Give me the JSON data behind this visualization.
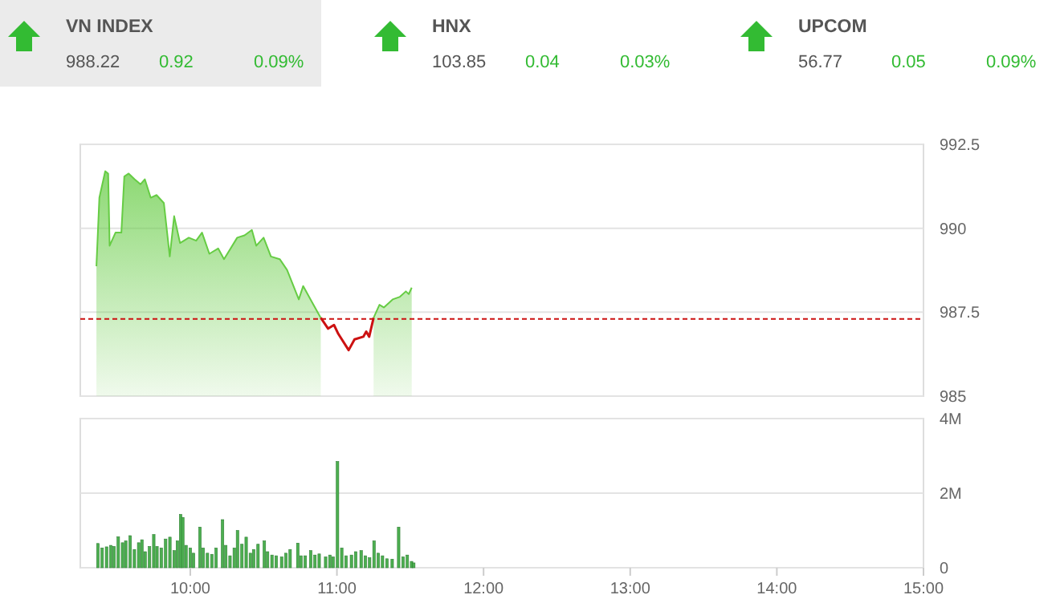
{
  "chart_data": [
    {
      "type": "other",
      "annotations": [
        "VN INDEX",
        "988.22",
        "0.92",
        "0.09%",
        "HNX",
        "103.85",
        "0.04",
        "0.03%",
        "UPCOM",
        "56.77",
        "0.05",
        "0.09%"
      ]
    },
    {
      "type": "area",
      "xlim": [
        9.25,
        15
      ],
      "ylim": [
        985,
        992.5
      ],
      "yticks": [
        985,
        987.5,
        990,
        992.5
      ],
      "grid": "y",
      "tick_labels": "y",
      "series": [
        {
          "type": "area",
          "color": "#66cc44",
          "x": [
            9.36,
            9.38,
            9.42,
            9.44,
            9.45,
            9.49,
            9.53,
            9.55,
            9.58,
            9.62,
            9.66,
            9.69,
            9.73,
            9.77,
            9.82,
            9.86,
            9.89,
            9.93,
            9.99,
            10.04,
            10.08,
            10.13,
            10.19,
            10.23,
            10.32,
            10.37,
            10.42,
            10.45,
            10.5,
            10.55,
            10.61,
            10.66,
            10.74,
            10.77,
            10.83,
            10.89,
            10.94,
            10.98,
            11.01,
            11.08,
            11.12,
            11.18,
            11.2,
            11.22,
            11.25,
            11.29,
            11.32,
            11.38,
            11.43,
            11.47,
            11.49,
            11.51
          ],
          "values": [
            988.87,
            990.91,
            991.7,
            991.63,
            989.48,
            989.87,
            989.87,
            991.54,
            991.63,
            991.46,
            991.31,
            991.46,
            990.91,
            990.99,
            990.75,
            989.16,
            990.36,
            989.56,
            989.72,
            989.63,
            989.87,
            989.24,
            989.4,
            989.08,
            989.72,
            989.79,
            989.95,
            989.48,
            989.72,
            989.16,
            989.08,
            988.76,
            987.88,
            988.28,
            987.8,
            987.33,
            null,
            null,
            null,
            null,
            null,
            null,
            null,
            null,
            987.33,
            987.72,
            987.64,
            987.88,
            987.96,
            988.12,
            988.04,
            988.23
          ]
        },
        {
          "type": "line",
          "color": "#cc1111",
          "x": [
            10.89,
            10.94,
            10.98,
            11.01,
            11.08,
            11.12,
            11.18,
            11.2,
            11.22,
            11.25
          ],
          "values": [
            987.33,
            987.01,
            987.12,
            986.85,
            986.37,
            986.69,
            986.77,
            986.92,
            986.77,
            987.33
          ]
        }
      ],
      "ref_lines": [
        {
          "axis": "y",
          "value": 987.3,
          "color": "#cc1111",
          "line_style": "dashed"
        }
      ]
    },
    {
      "type": "bar",
      "color": "#4caf50",
      "xlim": [
        9.25,
        15
      ],
      "xticks": [
        {
          "value": 10,
          "label": "10:00"
        },
        {
          "value": 11,
          "label": "11:00"
        },
        {
          "value": 12,
          "label": "12:00"
        },
        {
          "value": 13,
          "label": "13:00"
        },
        {
          "value": 14,
          "label": "14:00"
        },
        {
          "value": 15,
          "label": "15:00"
        }
      ],
      "ylim": [
        0,
        4000000
      ],
      "yticks": [
        0,
        {
          "value": 2000000,
          "label": "2M"
        },
        {
          "value": 4000000,
          "label": "4M"
        }
      ],
      "grid": "y",
      "x": [
        9.37,
        9.399,
        9.429,
        9.458,
        9.48,
        9.509,
        9.538,
        9.56,
        9.59,
        9.619,
        9.648,
        9.67,
        9.692,
        9.722,
        9.751,
        9.773,
        9.802,
        9.832,
        9.861,
        9.89,
        9.912,
        9.934,
        9.949,
        9.971,
        10,
        10.022,
        10.066,
        10.088,
        10.117,
        10.147,
        10.176,
        10.22,
        10.242,
        10.271,
        10.3,
        10.322,
        10.352,
        10.381,
        10.41,
        10.432,
        10.462,
        10.505,
        10.527,
        10.557,
        10.586,
        10.623,
        10.652,
        10.681,
        10.733,
        10.755,
        10.784,
        10.821,
        10.85,
        10.879,
        10.923,
        10.952,
        10.974,
        11.004,
        11.033,
        11.062,
        11.099,
        11.128,
        11.165,
        11.194,
        11.223,
        11.253,
        11.282,
        11.311,
        11.341,
        11.377,
        11.421,
        11.451,
        11.48,
        11.509,
        11.524
      ],
      "values": [
        650000,
        530000,
        560000,
        600000,
        570000,
        830000,
        670000,
        720000,
        860000,
        490000,
        670000,
        750000,
        430000,
        570000,
        890000,
        570000,
        530000,
        770000,
        820000,
        460000,
        720000,
        1430000,
        1350000,
        600000,
        530000,
        390000,
        1090000,
        530000,
        390000,
        360000,
        530000,
        1290000,
        600000,
        320000,
        530000,
        1000000,
        630000,
        820000,
        390000,
        490000,
        630000,
        720000,
        430000,
        340000,
        320000,
        290000,
        390000,
        490000,
        660000,
        320000,
        320000,
        460000,
        340000,
        370000,
        290000,
        340000,
        290000,
        2850000,
        530000,
        320000,
        340000,
        430000,
        460000,
        320000,
        270000,
        720000,
        390000,
        320000,
        240000,
        230000,
        1090000,
        290000,
        340000,
        170000,
        130000
      ]
    }
  ]
}
